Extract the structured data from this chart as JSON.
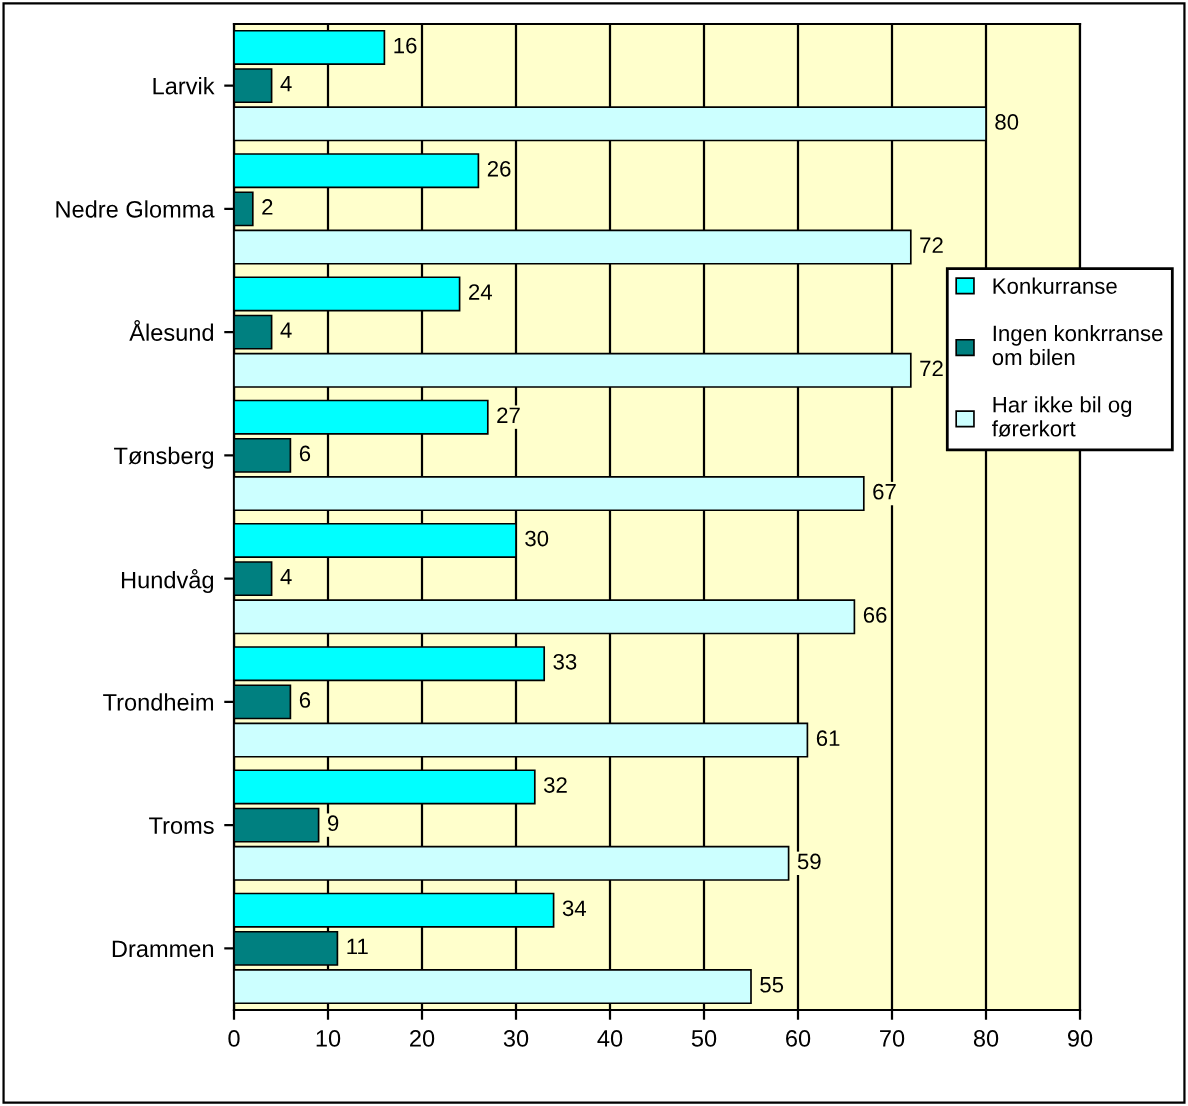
{
  "chart_data": {
    "type": "bar",
    "orientation": "horizontal",
    "categories": [
      "Larvik",
      "Nedre Glomma",
      "Ålesund",
      "Tønsberg",
      "Hundvåg",
      "Trondheim",
      "Troms",
      "Drammen"
    ],
    "series": [
      {
        "name": "Konkurranse",
        "color": "#00ffff",
        "values": [
          16,
          26,
          24,
          27,
          30,
          33,
          32,
          34
        ]
      },
      {
        "name": "Ingen konkrranse om bilen",
        "color": "#008080",
        "values": [
          4,
          2,
          4,
          6,
          4,
          6,
          9,
          11
        ]
      },
      {
        "name": "Har ikke bil og førerkort",
        "color": "#ccffff",
        "values": [
          80,
          72,
          72,
          67,
          66,
          61,
          59,
          55
        ]
      }
    ],
    "xlim": [
      0,
      90
    ],
    "xticks": [
      0,
      10,
      20,
      30,
      40,
      50,
      60,
      70,
      80,
      90
    ],
    "grid": "x",
    "legend": "right",
    "data_labels": true
  }
}
